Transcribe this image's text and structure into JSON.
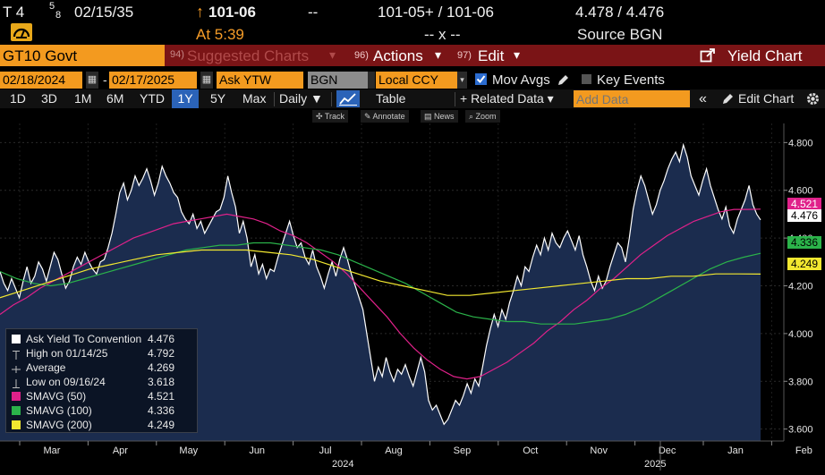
{
  "header": {
    "ticker_prefix": "T 4",
    "coupon_frac_top": "5",
    "coupon_frac_bot": "8",
    "maturity": "02/15/35",
    "arrow": "↑",
    "last_price": "101-06",
    "dash": "--",
    "bid_ask": "101-05+ / 101-06",
    "yields": "4.478 / 4.476",
    "at_time": "At 5:39",
    "size": "-- x --",
    "source": "Source BGN"
  },
  "toolbar": {
    "security": "GT10 Govt",
    "suggested_num": "94)",
    "suggested": "Suggested Charts",
    "caret": "▾",
    "actions_num": "96)",
    "actions": "Actions",
    "edit_num": "97)",
    "edit": "Edit",
    "yield_chart": "Yield Chart"
  },
  "params": {
    "start_date": "02/18/2024",
    "dash": "-",
    "end_date": "02/17/2025",
    "field": "Ask YTW",
    "source": "BGN",
    "currency": "Local CCY",
    "mov_avgs": "Mov Avgs",
    "key_events": "Key Events"
  },
  "periods": [
    "1D",
    "3D",
    "1M",
    "6M",
    "YTD",
    "1Y",
    "5Y",
    "Max"
  ],
  "selected_period": "1Y",
  "nav": {
    "daily": "Daily ▼",
    "table": "Table",
    "related": "+ Related Data ▾",
    "add_data_placeholder": "Add Data",
    "collapse": "«",
    "edit_chart": "Edit Chart"
  },
  "mini_tools": [
    "Track",
    "Annotate",
    "News",
    "Zoom"
  ],
  "colors": {
    "yield": "#ffffff",
    "area_fill": "#1b2c4e",
    "sma50": "#e0218a",
    "sma100": "#2bb34a",
    "sma200": "#f2e830",
    "accent": "#f39a1f"
  },
  "chart_data": {
    "type": "line",
    "ylim": [
      3.55,
      4.88
    ],
    "yticks": [
      "3.600",
      "3.800",
      "4.000",
      "4.200",
      "4.400",
      "4.600",
      "4.800"
    ],
    "ytick_values": [
      3.6,
      3.8,
      4.0,
      4.2,
      4.4,
      4.6,
      4.8
    ],
    "xmonths": [
      "Mar",
      "Apr",
      "May",
      "Jun",
      "Jul",
      "Aug",
      "Sep",
      "Oct",
      "Nov",
      "Dec",
      "Jan",
      "Feb"
    ],
    "xyears": [
      "2024",
      "2025"
    ],
    "grid": true,
    "last_value_tags": [
      {
        "label": "4.521",
        "color": "#e0218a",
        "value": 4.521
      },
      {
        "label": "4.476",
        "color": "#ffffff",
        "value": 4.476
      },
      {
        "label": "4.336",
        "color": "#2bb34a",
        "value": 4.336
      },
      {
        "label": "4.249",
        "color": "#f2e830",
        "value": 4.249
      }
    ],
    "series": [
      {
        "name": "Ask Yield To Convention",
        "values": [
          4.26,
          4.21,
          4.18,
          4.23,
          4.19,
          4.15,
          4.22,
          4.28,
          4.21,
          4.24,
          4.3,
          4.27,
          4.22,
          4.28,
          4.34,
          4.31,
          4.25,
          4.19,
          4.22,
          4.28,
          4.32,
          4.29,
          4.34,
          4.3,
          4.27,
          4.25,
          4.3,
          4.31,
          4.36,
          4.42,
          4.5,
          4.59,
          4.63,
          4.56,
          4.6,
          4.66,
          4.62,
          4.65,
          4.69,
          4.64,
          4.58,
          4.63,
          4.7,
          4.66,
          4.63,
          4.59,
          4.57,
          4.51,
          4.48,
          4.46,
          4.5,
          4.44,
          4.47,
          4.42,
          4.45,
          4.48,
          4.51,
          4.52,
          4.57,
          4.66,
          4.59,
          4.53,
          4.42,
          4.47,
          4.4,
          4.28,
          4.33,
          4.25,
          4.29,
          4.23,
          4.27,
          4.26,
          4.32,
          4.37,
          4.42,
          4.47,
          4.41,
          4.36,
          4.38,
          4.32,
          4.29,
          4.35,
          4.28,
          4.24,
          4.19,
          4.25,
          4.3,
          4.24,
          4.31,
          4.36,
          4.31,
          4.25,
          4.2,
          4.15,
          4.1,
          4.0,
          3.9,
          3.8,
          3.86,
          3.82,
          3.9,
          3.84,
          3.8,
          3.85,
          3.83,
          3.87,
          3.82,
          3.78,
          3.84,
          3.9,
          3.84,
          3.72,
          3.68,
          3.7,
          3.66,
          3.62,
          3.64,
          3.68,
          3.72,
          3.7,
          3.74,
          3.79,
          3.75,
          3.81,
          3.78,
          3.86,
          3.95,
          4.02,
          4.08,
          4.03,
          4.1,
          4.06,
          4.13,
          4.18,
          4.24,
          4.2,
          4.28,
          4.26,
          4.32,
          4.37,
          4.33,
          4.4,
          4.35,
          4.42,
          4.38,
          4.36,
          4.4,
          4.43,
          4.39,
          4.35,
          4.41,
          4.33,
          4.28,
          4.22,
          4.18,
          4.24,
          4.19,
          4.22,
          4.28,
          4.33,
          4.38,
          4.36,
          4.3,
          4.4,
          4.52,
          4.6,
          4.66,
          4.62,
          4.56,
          4.5,
          4.54,
          4.6,
          4.64,
          4.69,
          4.73,
          4.76,
          4.72,
          4.79,
          4.74,
          4.66,
          4.62,
          4.58,
          4.64,
          4.69,
          4.62,
          4.57,
          4.52,
          4.48,
          4.53,
          4.45,
          4.42,
          4.48,
          4.52,
          4.56,
          4.62,
          4.54,
          4.5,
          4.476
        ]
      },
      {
        "name": "SMAVG (50)",
        "values": [
          4.08,
          4.12,
          4.15,
          4.19,
          4.22,
          4.25,
          4.28,
          4.31,
          4.34,
          4.37,
          4.4,
          4.42,
          4.44,
          4.46,
          4.47,
          4.48,
          4.49,
          4.5,
          4.49,
          4.48,
          4.46,
          4.43,
          4.41,
          4.38,
          4.34,
          4.3,
          4.25,
          4.19,
          4.13,
          4.07,
          4.0,
          3.94,
          3.89,
          3.85,
          3.82,
          3.81,
          3.82,
          3.85,
          3.88,
          3.92,
          3.96,
          4.01,
          4.05,
          4.1,
          4.14,
          4.19,
          4.23,
          4.28,
          4.33,
          4.37,
          4.41,
          4.44,
          4.47,
          4.49,
          4.51,
          4.52,
          4.52,
          4.521
        ]
      },
      {
        "name": "SMAVG (100)",
        "values": [
          4.26,
          4.23,
          4.21,
          4.2,
          4.21,
          4.23,
          4.25,
          4.27,
          4.29,
          4.31,
          4.33,
          4.35,
          4.36,
          4.37,
          4.37,
          4.38,
          4.38,
          4.37,
          4.36,
          4.35,
          4.33,
          4.3,
          4.27,
          4.24,
          4.21,
          4.17,
          4.13,
          4.09,
          4.07,
          4.06,
          4.05,
          4.05,
          4.04,
          4.04,
          4.04,
          4.05,
          4.06,
          4.08,
          4.11,
          4.15,
          4.19,
          4.23,
          4.27,
          4.3,
          4.32,
          4.336
        ]
      },
      {
        "name": "SMAVG (200)",
        "values": [
          4.15,
          4.18,
          4.21,
          4.24,
          4.27,
          4.29,
          4.31,
          4.33,
          4.34,
          4.35,
          4.35,
          4.35,
          4.34,
          4.33,
          4.31,
          4.28,
          4.25,
          4.22,
          4.2,
          4.18,
          4.16,
          4.16,
          4.17,
          4.18,
          4.19,
          4.2,
          4.21,
          4.22,
          4.23,
          4.23,
          4.24,
          4.24,
          4.25,
          4.25,
          4.249
        ]
      }
    ]
  },
  "legend": {
    "items": [
      {
        "name": "Ask Yield To Convention",
        "value": "4.476",
        "sw": "#ffffff",
        "kind": "box"
      },
      {
        "name": "High on 01/14/25",
        "value": "4.792",
        "sw": "",
        "kind": "high"
      },
      {
        "name": "Average",
        "value": "4.269",
        "sw": "",
        "kind": "avg"
      },
      {
        "name": "Low on 09/16/24",
        "value": "3.618",
        "sw": "",
        "kind": "low"
      },
      {
        "name": "SMAVG (50)",
        "value": "4.521",
        "sw": "#e0218a",
        "kind": "box"
      },
      {
        "name": "SMAVG (100)",
        "value": "4.336",
        "sw": "#2bb34a",
        "kind": "box"
      },
      {
        "name": "SMAVG (200)",
        "value": "4.249",
        "sw": "#f2e830",
        "kind": "box"
      }
    ]
  }
}
